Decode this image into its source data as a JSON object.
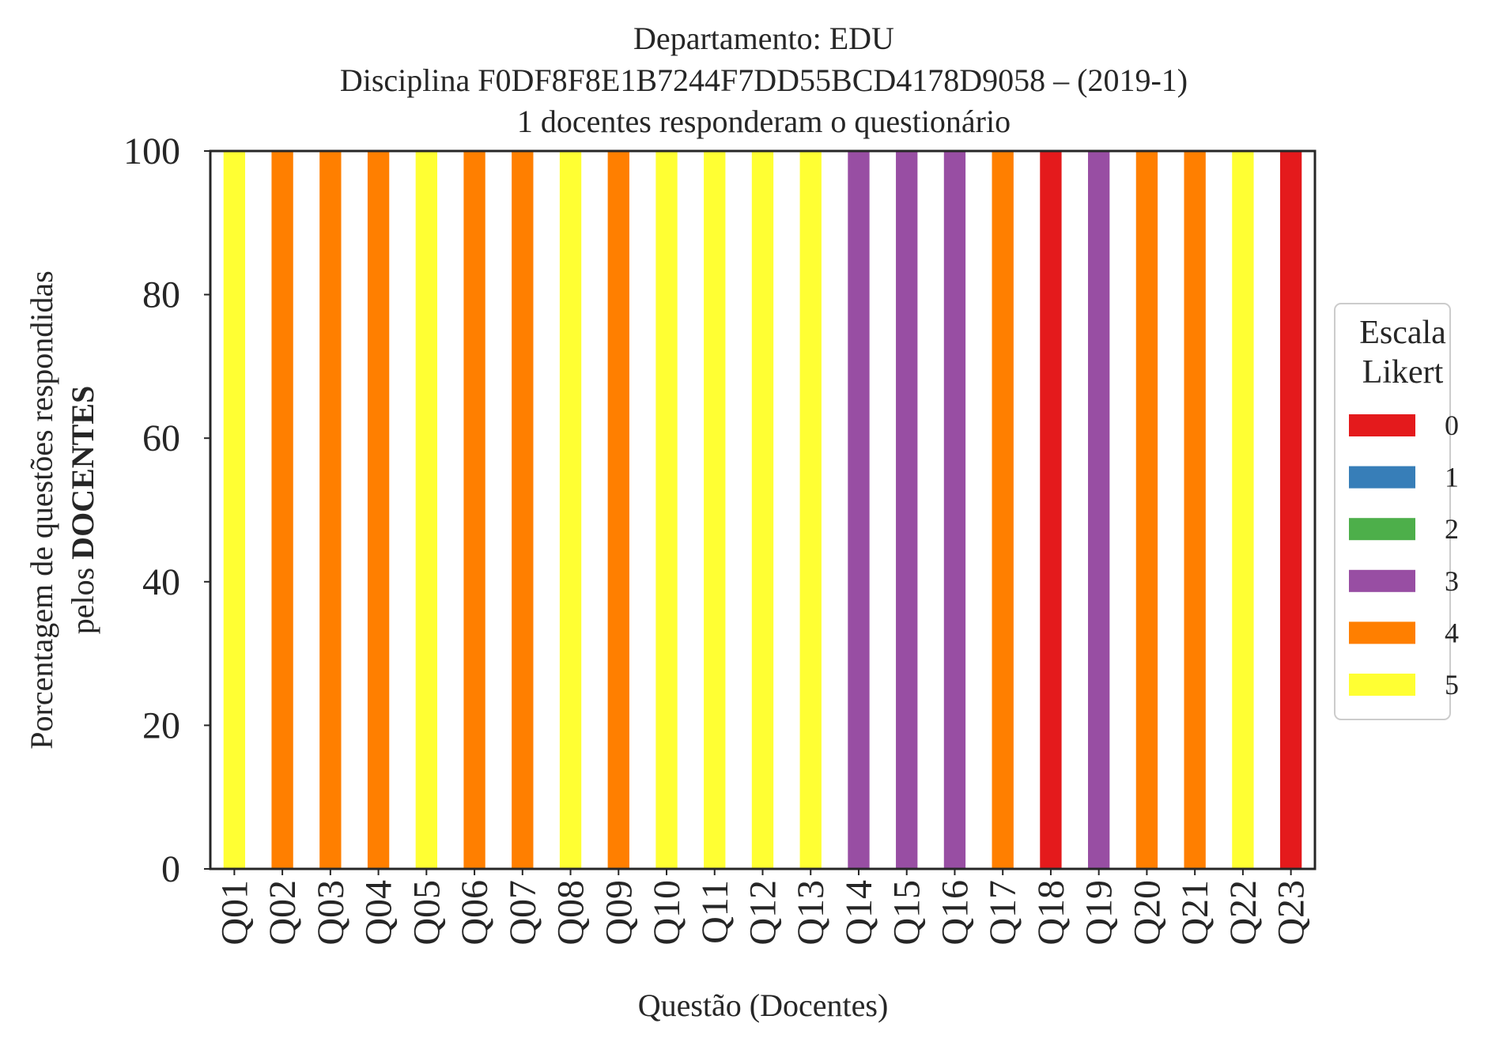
{
  "chart_data": {
    "type": "bar",
    "stacked": true,
    "title": [
      "Departamento: EDU",
      "Disciplina F0DF8F8E1B7244F7DD55BCD4178D9058 – (2019-1)",
      "1 docentes responderam o questionário"
    ],
    "xlabel": "Questão (Docentes)",
    "ylabel_line1": "Porcentagem de questões respondidas",
    "ylabel_line2_prefix": "pelos ",
    "ylabel_line2_bold": "DOCENTES",
    "ylim": [
      0,
      100
    ],
    "yticks": [
      "0",
      "20",
      "40",
      "60",
      "80",
      "100"
    ],
    "grid": false,
    "categories": [
      "Q01",
      "Q02",
      "Q03",
      "Q04",
      "Q05",
      "Q06",
      "Q07",
      "Q08",
      "Q09",
      "Q10",
      "Q11",
      "Q12",
      "Q13",
      "Q14",
      "Q15",
      "Q16",
      "Q17",
      "Q18",
      "Q19",
      "Q20",
      "Q21",
      "Q22",
      "Q23"
    ],
    "series": [
      {
        "name": "0",
        "color": "#e41a1c",
        "values": [
          0,
          0,
          0,
          0,
          0,
          0,
          0,
          0,
          0,
          0,
          0,
          0,
          0,
          0,
          0,
          0,
          0,
          100,
          0,
          0,
          0,
          0,
          100
        ]
      },
      {
        "name": "1",
        "color": "#377eb8",
        "values": [
          0,
          0,
          0,
          0,
          0,
          0,
          0,
          0,
          0,
          0,
          0,
          0,
          0,
          0,
          0,
          0,
          0,
          0,
          0,
          0,
          0,
          0,
          0
        ]
      },
      {
        "name": "2",
        "color": "#4daf4a",
        "values": [
          0,
          0,
          0,
          0,
          0,
          0,
          0,
          0,
          0,
          0,
          0,
          0,
          0,
          0,
          0,
          0,
          0,
          0,
          0,
          0,
          0,
          0,
          0
        ]
      },
      {
        "name": "3",
        "color": "#984ea3",
        "values": [
          0,
          0,
          0,
          0,
          0,
          0,
          0,
          0,
          0,
          0,
          0,
          0,
          0,
          100,
          100,
          100,
          0,
          0,
          100,
          0,
          0,
          0,
          0
        ]
      },
      {
        "name": "4",
        "color": "#ff7f00",
        "values": [
          0,
          100,
          100,
          100,
          0,
          100,
          100,
          0,
          100,
          0,
          0,
          0,
          0,
          0,
          0,
          0,
          100,
          0,
          0,
          100,
          100,
          0,
          0
        ]
      },
      {
        "name": "5",
        "color": "#ffff33",
        "values": [
          100,
          0,
          0,
          0,
          100,
          0,
          0,
          100,
          0,
          100,
          100,
          100,
          100,
          0,
          0,
          0,
          0,
          0,
          0,
          0,
          0,
          100,
          0
        ]
      }
    ],
    "legend": {
      "title": [
        "Escala",
        "Likert"
      ],
      "placement": "center-right-outside"
    }
  }
}
